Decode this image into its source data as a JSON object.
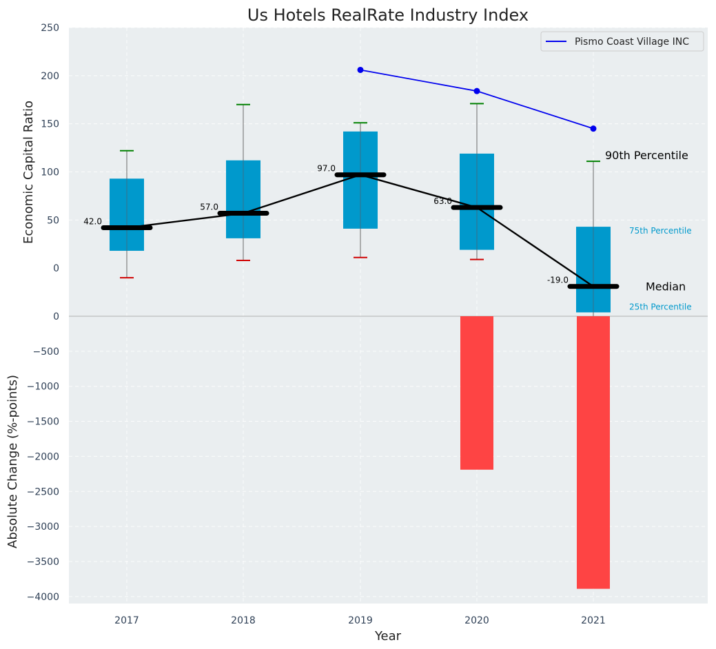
{
  "chart_data": {
    "type": "box+bar",
    "title": "Us Hotels RealRate Industry Index",
    "xlabel": "Year",
    "categories": [
      "2017",
      "2018",
      "2019",
      "2020",
      "2021"
    ],
    "top_panel": {
      "ylabel": "Economic Capital Ratio",
      "ylim": [
        -50,
        250
      ],
      "yticks": [
        "250",
        "200",
        "150",
        "100",
        "50",
        "0"
      ],
      "boxes": [
        {
          "year": "2017",
          "p10": -10,
          "p25": 18,
          "median": 42,
          "p75": 93,
          "p90": 122,
          "label": "42.0"
        },
        {
          "year": "2018",
          "p10": 8,
          "p25": 31,
          "median": 57,
          "p75": 112,
          "p90": 170,
          "label": "57.0"
        },
        {
          "year": "2019",
          "p10": 11,
          "p25": 41,
          "median": 97,
          "p75": 142,
          "p90": 151,
          "label": "97.0"
        },
        {
          "year": "2020",
          "p10": 9,
          "p25": 19,
          "median": 63,
          "p75": 119,
          "p90": 171,
          "label": "63.0"
        },
        {
          "year": "2021",
          "p10": -50,
          "p25": -46,
          "median": -19,
          "p75": 43,
          "p90": 111,
          "label": "-19.0"
        }
      ],
      "company_series": {
        "name": "Pismo Coast Village INC",
        "x": [
          "2019",
          "2020",
          "2021"
        ],
        "values": [
          206,
          184,
          145
        ],
        "color": "#0000ee"
      },
      "annotations": {
        "p90": "90th Percentile",
        "p75": "75th Percentile",
        "median": "Median",
        "p25": "25th Percentile"
      }
    },
    "bottom_panel": {
      "ylabel": "Absolute Change (%-points)",
      "ylim": [
        -4100,
        0
      ],
      "yticks": [
        "0",
        "−500",
        "−1000",
        "−1500",
        "−2000",
        "−2500",
        "−3000",
        "−3500",
        "−4000"
      ],
      "bars": [
        {
          "year": "2020",
          "value": -2190
        },
        {
          "year": "2021",
          "value": -3890
        }
      ]
    },
    "colors": {
      "box": "#0099cc",
      "bar": "#ff3a3a",
      "median_line": "#000000",
      "whisker_top": "#008000",
      "whisker_bottom": "#d00000",
      "background": "#eaeef0"
    },
    "legend": {
      "location": "top-right"
    }
  }
}
